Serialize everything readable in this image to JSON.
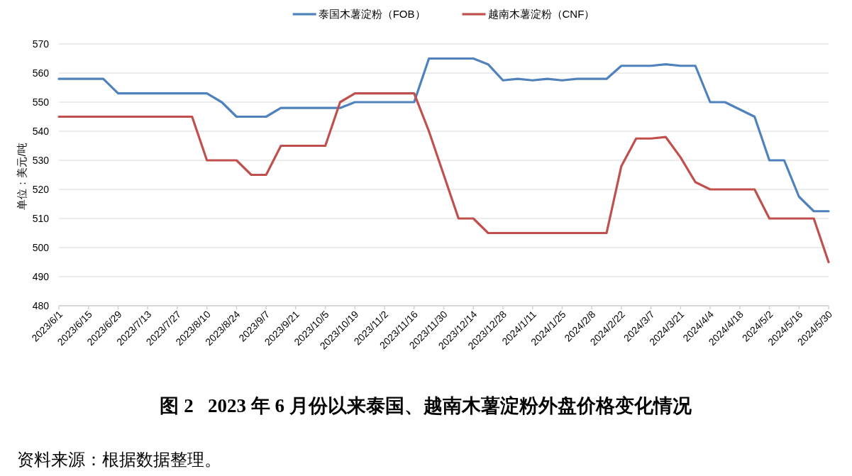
{
  "chart_data": {
    "type": "line",
    "title": "图 2   2023 年 6 月份以来泰国、越南木薯淀粉外盘价格变化情况",
    "ylabel": "单位：美元/吨",
    "annotations": [
      "资料来源：根据数据整理。"
    ],
    "x": [
      "2023-06-01",
      "2023-06-08",
      "2023-06-15",
      "2023-06-22",
      "2023-06-29",
      "2023-07-06",
      "2023-07-13",
      "2023-07-20",
      "2023-07-27",
      "2023-08-03",
      "2023-08-10",
      "2023-08-17",
      "2023-08-24",
      "2023-08-31",
      "2023-09-07",
      "2023-09-14",
      "2023-09-21",
      "2023-09-28",
      "2023-10-05",
      "2023-10-12",
      "2023-10-19",
      "2023-10-26",
      "2023-11-02",
      "2023-11-09",
      "2023-11-16",
      "2023-11-23",
      "2023-11-30",
      "2023-12-07",
      "2023-12-14",
      "2023-12-21",
      "2023-12-28",
      "2024-01-04",
      "2024-01-11",
      "2024-01-18",
      "2024-01-25",
      "2024-02-01",
      "2024-02-08",
      "2024-02-15",
      "2024-02-22",
      "2024-02-29",
      "2024-03-07",
      "2024-03-14",
      "2024-03-21",
      "2024-03-28",
      "2024-04-04",
      "2024-04-11",
      "2024-04-18",
      "2024-04-25",
      "2024-05-02",
      "2024-05-09",
      "2024-05-16",
      "2024-05-23",
      "2024-05-30"
    ],
    "xlim": [
      "2023-06-01",
      "2024-05-30"
    ],
    "xticks": [
      {
        "value": "2023-06-01",
        "label": "2023/6/1"
      },
      {
        "value": "2023-06-15",
        "label": "2023/6/15"
      },
      {
        "value": "2023-06-29",
        "label": "2023/6/29"
      },
      {
        "value": "2023-07-13",
        "label": "2023/7/13"
      },
      {
        "value": "2023-07-27",
        "label": "2023/7/27"
      },
      {
        "value": "2023-08-10",
        "label": "2023/8/10"
      },
      {
        "value": "2023-08-24",
        "label": "2023/8/24"
      },
      {
        "value": "2023-09-07",
        "label": "2023/9/7"
      },
      {
        "value": "2023-09-21",
        "label": "2023/9/21"
      },
      {
        "value": "2023-10-05",
        "label": "2023/10/5"
      },
      {
        "value": "2023-10-19",
        "label": "2023/10/19"
      },
      {
        "value": "2023-11-02",
        "label": "2023/11/2"
      },
      {
        "value": "2023-11-16",
        "label": "2023/11/16"
      },
      {
        "value": "2023-11-30",
        "label": "2023/11/30"
      },
      {
        "value": "2023-12-14",
        "label": "2023/12/14"
      },
      {
        "value": "2023-12-28",
        "label": "2023/12/28"
      },
      {
        "value": "2024-01-11",
        "label": "2024/1/11"
      },
      {
        "value": "2024-01-25",
        "label": "2024/1/25"
      },
      {
        "value": "2024-02-08",
        "label": "2024/2/8"
      },
      {
        "value": "2024-02-22",
        "label": "2024/2/22"
      },
      {
        "value": "2024-03-07",
        "label": "2024/3/7"
      },
      {
        "value": "2024-03-21",
        "label": "2024/3/21"
      },
      {
        "value": "2024-04-04",
        "label": "2024/4/4"
      },
      {
        "value": "2024-04-18",
        "label": "2024/4/18"
      },
      {
        "value": "2024-05-02",
        "label": "2024/5/2"
      },
      {
        "value": "2024-05-16",
        "label": "2024/5/16"
      },
      {
        "value": "2024-05-30",
        "label": "2024/5/30"
      }
    ],
    "ylim": [
      480,
      570
    ],
    "yticks": [
      480,
      490,
      500,
      510,
      520,
      530,
      540,
      550,
      560,
      570
    ],
    "grid": "y",
    "legend": "top",
    "line_style": "solid",
    "series": [
      {
        "name": "泰国木薯淀粉（FOB）",
        "color": "#4f81bd",
        "values": [
          558,
          558,
          558,
          558,
          553,
          553,
          553,
          553,
          553,
          553,
          553,
          550,
          545,
          545,
          545,
          548,
          548,
          548,
          548,
          548,
          550,
          550,
          550,
          550,
          550,
          565,
          565,
          565,
          565,
          563,
          557.5,
          558,
          557.5,
          558,
          557.5,
          558,
          558,
          558,
          562.5,
          562.5,
          562.5,
          563,
          562.5,
          562.5,
          550,
          550,
          547.5,
          545,
          530,
          530,
          517.5,
          512.5,
          512.5
        ]
      },
      {
        "name": "越南木薯淀粉（CNF）",
        "color": "#c0504d",
        "values": [
          545,
          545,
          545,
          545,
          545,
          545,
          545,
          545,
          545,
          545,
          530,
          530,
          530,
          525,
          525,
          535,
          535,
          535,
          535,
          550,
          553,
          553,
          553,
          553,
          553,
          540,
          525,
          510,
          510,
          505,
          505,
          505,
          505,
          505,
          505,
          505,
          505,
          505,
          528,
          537.5,
          537.5,
          538,
          531,
          522.5,
          520,
          520,
          520,
          520,
          510,
          510,
          510,
          510,
          495
        ]
      }
    ]
  }
}
